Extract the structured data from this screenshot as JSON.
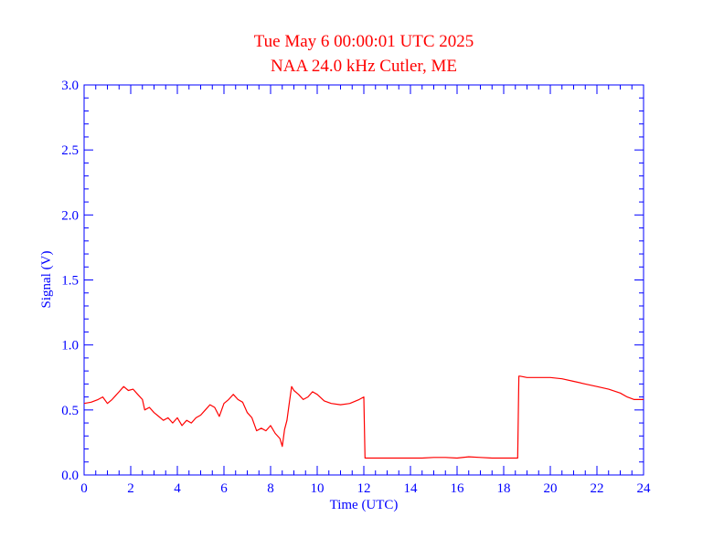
{
  "chart_data": {
    "type": "line",
    "title": "Tue May 6 00:00:01 UTC 2025",
    "subtitle": "NAA 24.0 kHz Cutler, ME",
    "xlabel": "Time (UTC)",
    "ylabel": "Signal (V)",
    "xlim": [
      0,
      24
    ],
    "ylim": [
      0,
      3.0
    ],
    "xticks": [
      0,
      2,
      4,
      6,
      8,
      10,
      12,
      14,
      16,
      18,
      20,
      22,
      24
    ],
    "yticks": [
      "0.0",
      "0.5",
      "1.0",
      "1.5",
      "2.0",
      "2.5",
      "3.0"
    ],
    "grid": false,
    "colors": {
      "line": "#ff0000",
      "axes": "#0000ff",
      "title": "#ff0000"
    },
    "series": [
      {
        "x": [
          0,
          0.3,
          0.6,
          0.8,
          1.0,
          1.2,
          1.5,
          1.7,
          1.9,
          2.1,
          2.3,
          2.5,
          2.6,
          2.8,
          3.0,
          3.2,
          3.4,
          3.6,
          3.8,
          4.0,
          4.2,
          4.4,
          4.6,
          4.8,
          5.0,
          5.2,
          5.4,
          5.6,
          5.8,
          6.0,
          6.2,
          6.4,
          6.6,
          6.8,
          7.0,
          7.2,
          7.4,
          7.6,
          7.8,
          8.0,
          8.2,
          8.4,
          8.5,
          8.6,
          8.7,
          8.8,
          8.9,
          9.0,
          9.2,
          9.4,
          9.6,
          9.8,
          10.0,
          10.3,
          10.6,
          11.0,
          11.4,
          11.8,
          12.0,
          12.05,
          12.3,
          12.6,
          13.0,
          13.5,
          14.0,
          14.5,
          15.0,
          15.5,
          16.0,
          16.5,
          17.0,
          17.5,
          18.0,
          18.4,
          18.6,
          18.65,
          18.7,
          19.0,
          19.5,
          20.0,
          20.5,
          21.0,
          21.5,
          22.0,
          22.5,
          23.0,
          23.3,
          23.6,
          24.0
        ],
        "y": [
          0.55,
          0.56,
          0.58,
          0.6,
          0.55,
          0.58,
          0.64,
          0.68,
          0.65,
          0.66,
          0.62,
          0.58,
          0.5,
          0.52,
          0.48,
          0.45,
          0.42,
          0.44,
          0.4,
          0.44,
          0.38,
          0.42,
          0.4,
          0.44,
          0.46,
          0.5,
          0.54,
          0.52,
          0.45,
          0.55,
          0.58,
          0.62,
          0.58,
          0.56,
          0.48,
          0.44,
          0.34,
          0.36,
          0.34,
          0.38,
          0.32,
          0.28,
          0.22,
          0.35,
          0.42,
          0.55,
          0.68,
          0.65,
          0.62,
          0.58,
          0.6,
          0.64,
          0.62,
          0.57,
          0.55,
          0.54,
          0.55,
          0.58,
          0.6,
          0.13,
          0.13,
          0.13,
          0.13,
          0.13,
          0.13,
          0.13,
          0.135,
          0.135,
          0.13,
          0.14,
          0.135,
          0.13,
          0.13,
          0.13,
          0.13,
          0.76,
          0.76,
          0.75,
          0.75,
          0.75,
          0.74,
          0.72,
          0.7,
          0.68,
          0.66,
          0.63,
          0.6,
          0.58,
          0.58
        ]
      }
    ]
  }
}
